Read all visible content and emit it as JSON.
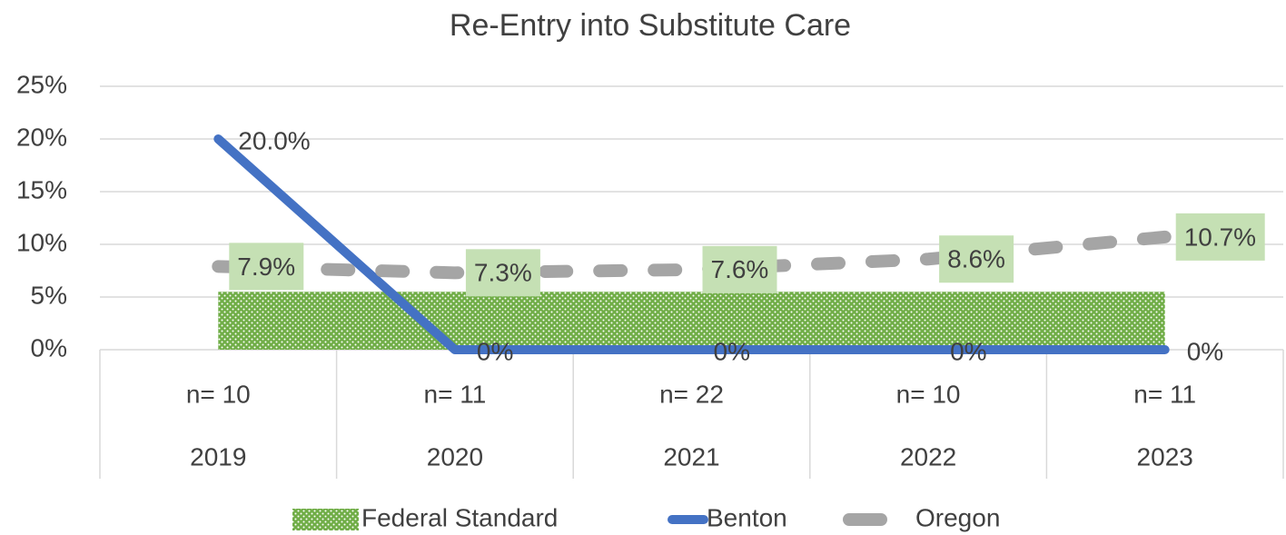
{
  "chart_data": {
    "type": "line",
    "title": "Re-Entry into Substitute Care",
    "categories": [
      "2019",
      "2020",
      "2021",
      "2022",
      "2023"
    ],
    "category_notes": [
      "n= 10",
      "n= 11",
      "n= 22",
      "n= 10",
      "n= 11"
    ],
    "ylim": [
      0,
      25
    ],
    "yticks": [
      {
        "value": 0,
        "label": "0%"
      },
      {
        "value": 5,
        "label": "5%"
      },
      {
        "value": 10,
        "label": "10%"
      },
      {
        "value": 15,
        "label": "15%"
      },
      {
        "value": 20,
        "label": "20%"
      },
      {
        "value": 25,
        "label": "25%"
      }
    ],
    "grid": true,
    "legend": "bottom",
    "series": [
      {
        "name": "Federal Standard",
        "type": "area",
        "color": "#70ad47",
        "values": [
          5.5,
          5.5,
          5.5,
          5.5,
          5.5
        ]
      },
      {
        "name": "Benton",
        "type": "line",
        "color": "#4472c4",
        "values": [
          20,
          0,
          0,
          0,
          0
        ],
        "value_labels": [
          "20.0%",
          "0%",
          "0%",
          "0%",
          "0%"
        ]
      },
      {
        "name": "Oregon",
        "type": "dashed",
        "color": "#a5a5a5",
        "label_background": "#c5e0b4",
        "values": [
          7.9,
          7.3,
          7.6,
          8.6,
          10.7
        ],
        "value_labels": [
          "7.9%",
          "7.3%",
          "7.6%",
          "8.6%",
          "10.7%"
        ]
      }
    ]
  }
}
